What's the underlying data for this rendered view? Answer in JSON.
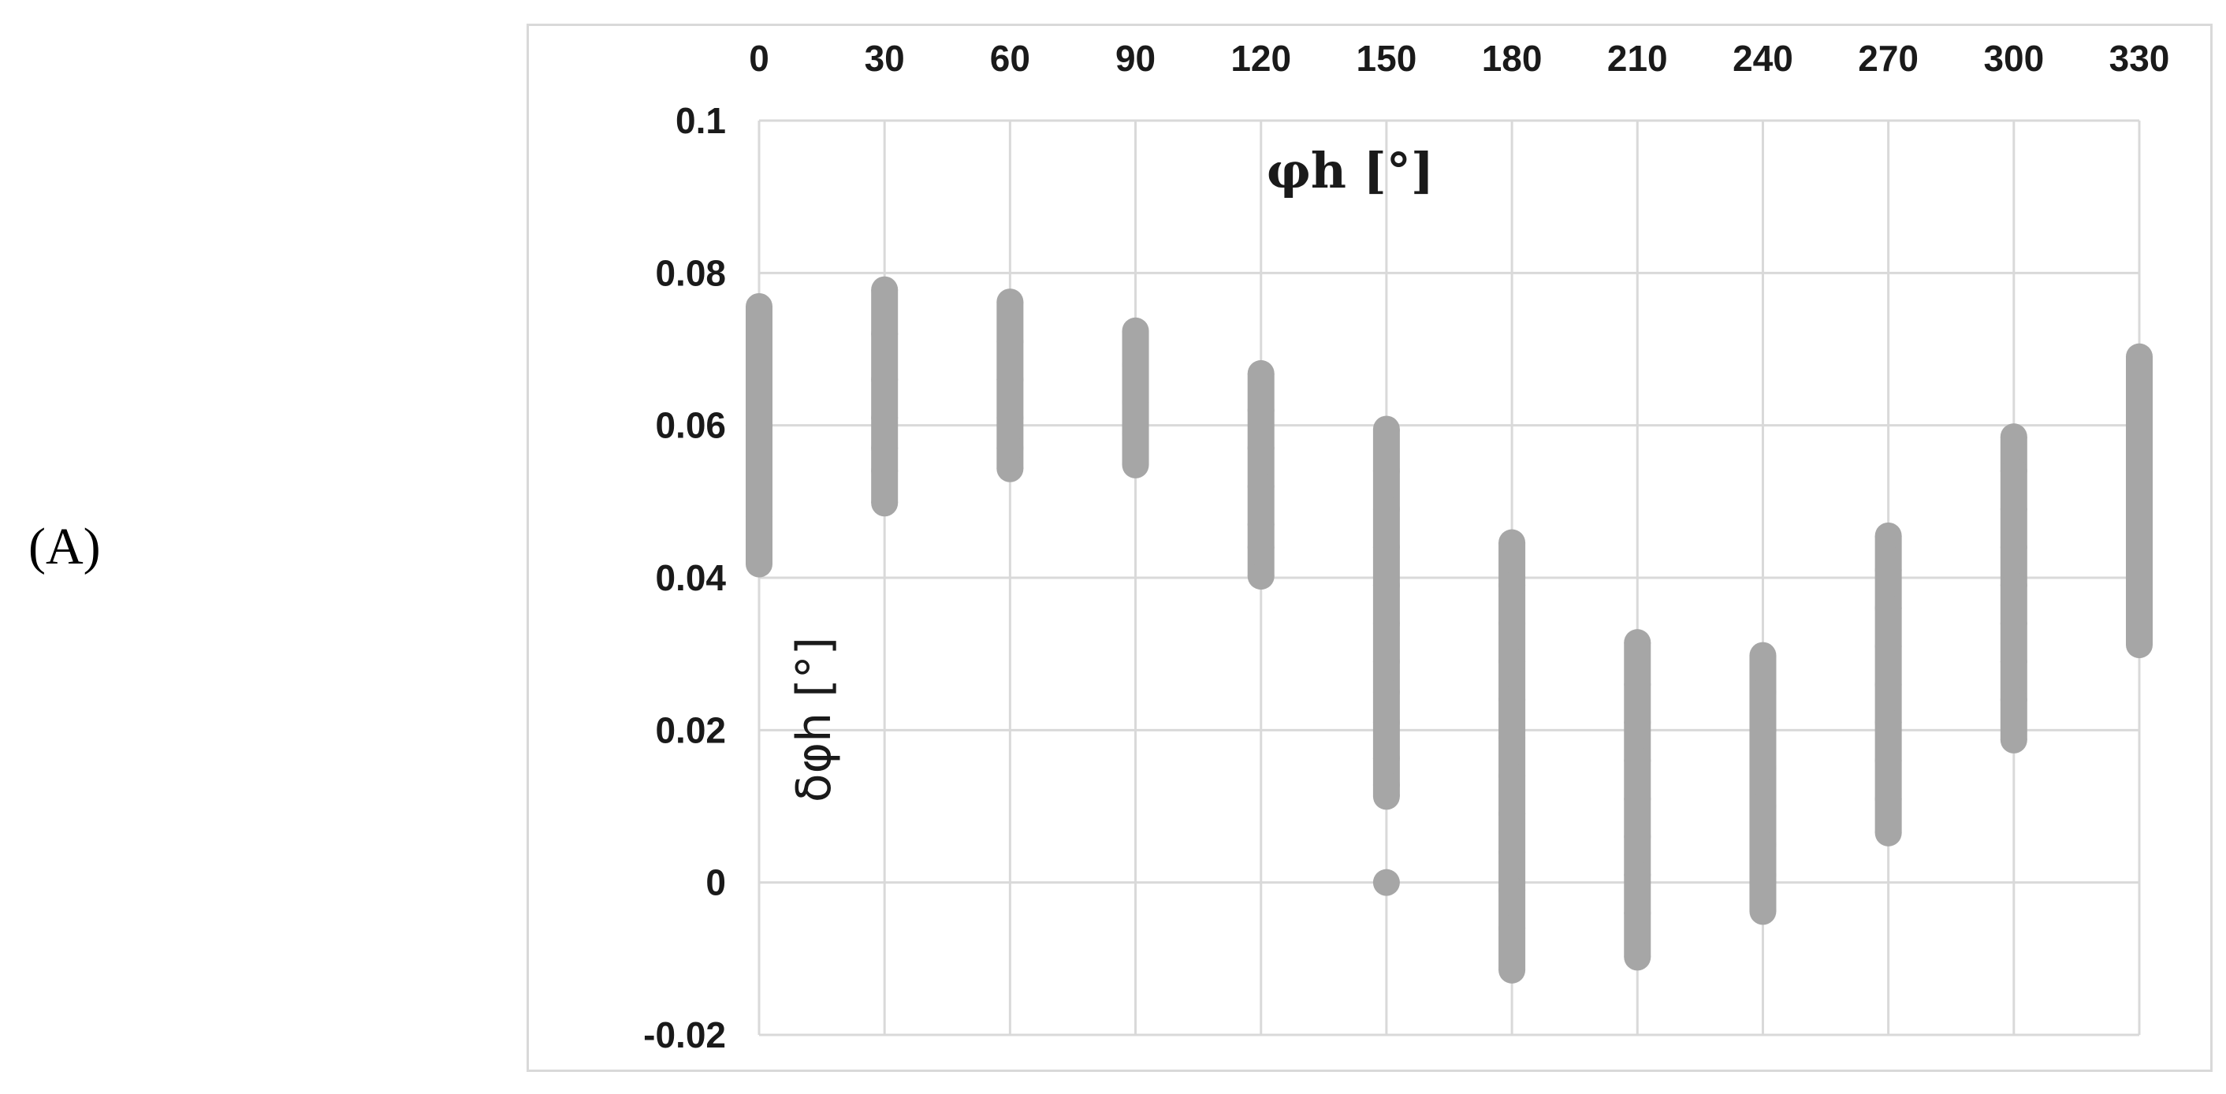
{
  "panel_label": "(A)",
  "chart_data": {
    "type": "scatter",
    "title": "",
    "xlabel": "φh [°]",
    "ylabel": "δφh [°]",
    "x_axis_position": "top",
    "xlim": [
      0,
      330
    ],
    "ylim": [
      -0.02,
      0.1
    ],
    "x_ticks": [
      "0",
      "30",
      "60",
      "90",
      "120",
      "150",
      "180",
      "210",
      "240",
      "270",
      "300",
      "330"
    ],
    "y_ticks": [
      "0.1",
      "0.08",
      "0.06",
      "0.04",
      "0.02",
      "0",
      "-0.02"
    ],
    "grid": true,
    "legend": "none",
    "marker_color": "#a6a6a6",
    "grid_color": "#d9d9d9",
    "series": [
      {
        "points": [
          {
            "x": 0,
            "y": 0.0756
          },
          {
            "x": 0,
            "y": 0.07
          },
          {
            "x": 0,
            "y": 0.065
          },
          {
            "x": 0,
            "y": 0.06
          },
          {
            "x": 0,
            "y": 0.055
          },
          {
            "x": 0,
            "y": 0.052
          },
          {
            "x": 0,
            "y": 0.048
          },
          {
            "x": 0,
            "y": 0.045
          },
          {
            "x": 0,
            "y": 0.0418
          },
          {
            "x": 30,
            "y": 0.0778
          },
          {
            "x": 30,
            "y": 0.072
          },
          {
            "x": 30,
            "y": 0.066
          },
          {
            "x": 30,
            "y": 0.061
          },
          {
            "x": 30,
            "y": 0.057
          },
          {
            "x": 30,
            "y": 0.054
          },
          {
            "x": 30,
            "y": 0.0498
          },
          {
            "x": 60,
            "y": 0.0762
          },
          {
            "x": 60,
            "y": 0.071
          },
          {
            "x": 60,
            "y": 0.066
          },
          {
            "x": 60,
            "y": 0.061
          },
          {
            "x": 60,
            "y": 0.057
          },
          {
            "x": 60,
            "y": 0.0543
          },
          {
            "x": 90,
            "y": 0.0724
          },
          {
            "x": 90,
            "y": 0.068
          },
          {
            "x": 90,
            "y": 0.063
          },
          {
            "x": 90,
            "y": 0.059
          },
          {
            "x": 90,
            "y": 0.0548
          },
          {
            "x": 120,
            "y": 0.0668
          },
          {
            "x": 120,
            "y": 0.062
          },
          {
            "x": 120,
            "y": 0.057
          },
          {
            "x": 120,
            "y": 0.052
          },
          {
            "x": 120,
            "y": 0.047
          },
          {
            "x": 120,
            "y": 0.044
          },
          {
            "x": 120,
            "y": 0.0402
          },
          {
            "x": 150,
            "y": 0.0595
          },
          {
            "x": 150,
            "y": 0.054
          },
          {
            "x": 150,
            "y": 0.049
          },
          {
            "x": 150,
            "y": 0.044
          },
          {
            "x": 150,
            "y": 0.039
          },
          {
            "x": 150,
            "y": 0.034
          },
          {
            "x": 150,
            "y": 0.029
          },
          {
            "x": 150,
            "y": 0.025
          },
          {
            "x": 150,
            "y": 0.021
          },
          {
            "x": 150,
            "y": 0.0163
          },
          {
            "x": 150,
            "y": 0.0128
          },
          {
            "x": 150,
            "y": 0.0113
          },
          {
            "x": 150,
            "y": 0.0
          },
          {
            "x": 180,
            "y": 0.0446
          },
          {
            "x": 180,
            "y": 0.039
          },
          {
            "x": 180,
            "y": 0.034
          },
          {
            "x": 180,
            "y": 0.029
          },
          {
            "x": 180,
            "y": 0.024
          },
          {
            "x": 180,
            "y": 0.019
          },
          {
            "x": 180,
            "y": 0.014
          },
          {
            "x": 180,
            "y": 0.009
          },
          {
            "x": 180,
            "y": 0.004
          },
          {
            "x": 180,
            "y": -0.001
          },
          {
            "x": 180,
            "y": -0.006
          },
          {
            "x": 180,
            "y": -0.0115
          },
          {
            "x": 210,
            "y": 0.0315
          },
          {
            "x": 210,
            "y": 0.026
          },
          {
            "x": 210,
            "y": 0.021
          },
          {
            "x": 210,
            "y": 0.016
          },
          {
            "x": 210,
            "y": 0.011
          },
          {
            "x": 210,
            "y": 0.006
          },
          {
            "x": 210,
            "y": 0.001
          },
          {
            "x": 210,
            "y": -0.004
          },
          {
            "x": 210,
            "y": -0.0098
          },
          {
            "x": 240,
            "y": 0.0298
          },
          {
            "x": 240,
            "y": 0.025
          },
          {
            "x": 240,
            "y": 0.02
          },
          {
            "x": 240,
            "y": 0.015
          },
          {
            "x": 240,
            "y": 0.01
          },
          {
            "x": 240,
            "y": 0.005
          },
          {
            "x": 240,
            "y": 0.001
          },
          {
            "x": 240,
            "y": -0.0038
          },
          {
            "x": 270,
            "y": 0.0455
          },
          {
            "x": 270,
            "y": 0.041
          },
          {
            "x": 270,
            "y": 0.036
          },
          {
            "x": 270,
            "y": 0.031
          },
          {
            "x": 270,
            "y": 0.026
          },
          {
            "x": 270,
            "y": 0.021
          },
          {
            "x": 270,
            "y": 0.016
          },
          {
            "x": 270,
            "y": 0.011
          },
          {
            "x": 270,
            "y": 0.0065
          },
          {
            "x": 300,
            "y": 0.0585
          },
          {
            "x": 300,
            "y": 0.054
          },
          {
            "x": 300,
            "y": 0.049
          },
          {
            "x": 300,
            "y": 0.044
          },
          {
            "x": 300,
            "y": 0.039
          },
          {
            "x": 300,
            "y": 0.034
          },
          {
            "x": 300,
            "y": 0.029
          },
          {
            "x": 300,
            "y": 0.024
          },
          {
            "x": 300,
            "y": 0.0187
          },
          {
            "x": 330,
            "y": 0.069
          },
          {
            "x": 330,
            "y": 0.064
          },
          {
            "x": 330,
            "y": 0.059
          },
          {
            "x": 330,
            "y": 0.054
          },
          {
            "x": 330,
            "y": 0.049
          },
          {
            "x": 330,
            "y": 0.044
          },
          {
            "x": 330,
            "y": 0.039
          },
          {
            "x": 330,
            "y": 0.035
          },
          {
            "x": 330,
            "y": 0.0312
          }
        ]
      }
    ]
  }
}
